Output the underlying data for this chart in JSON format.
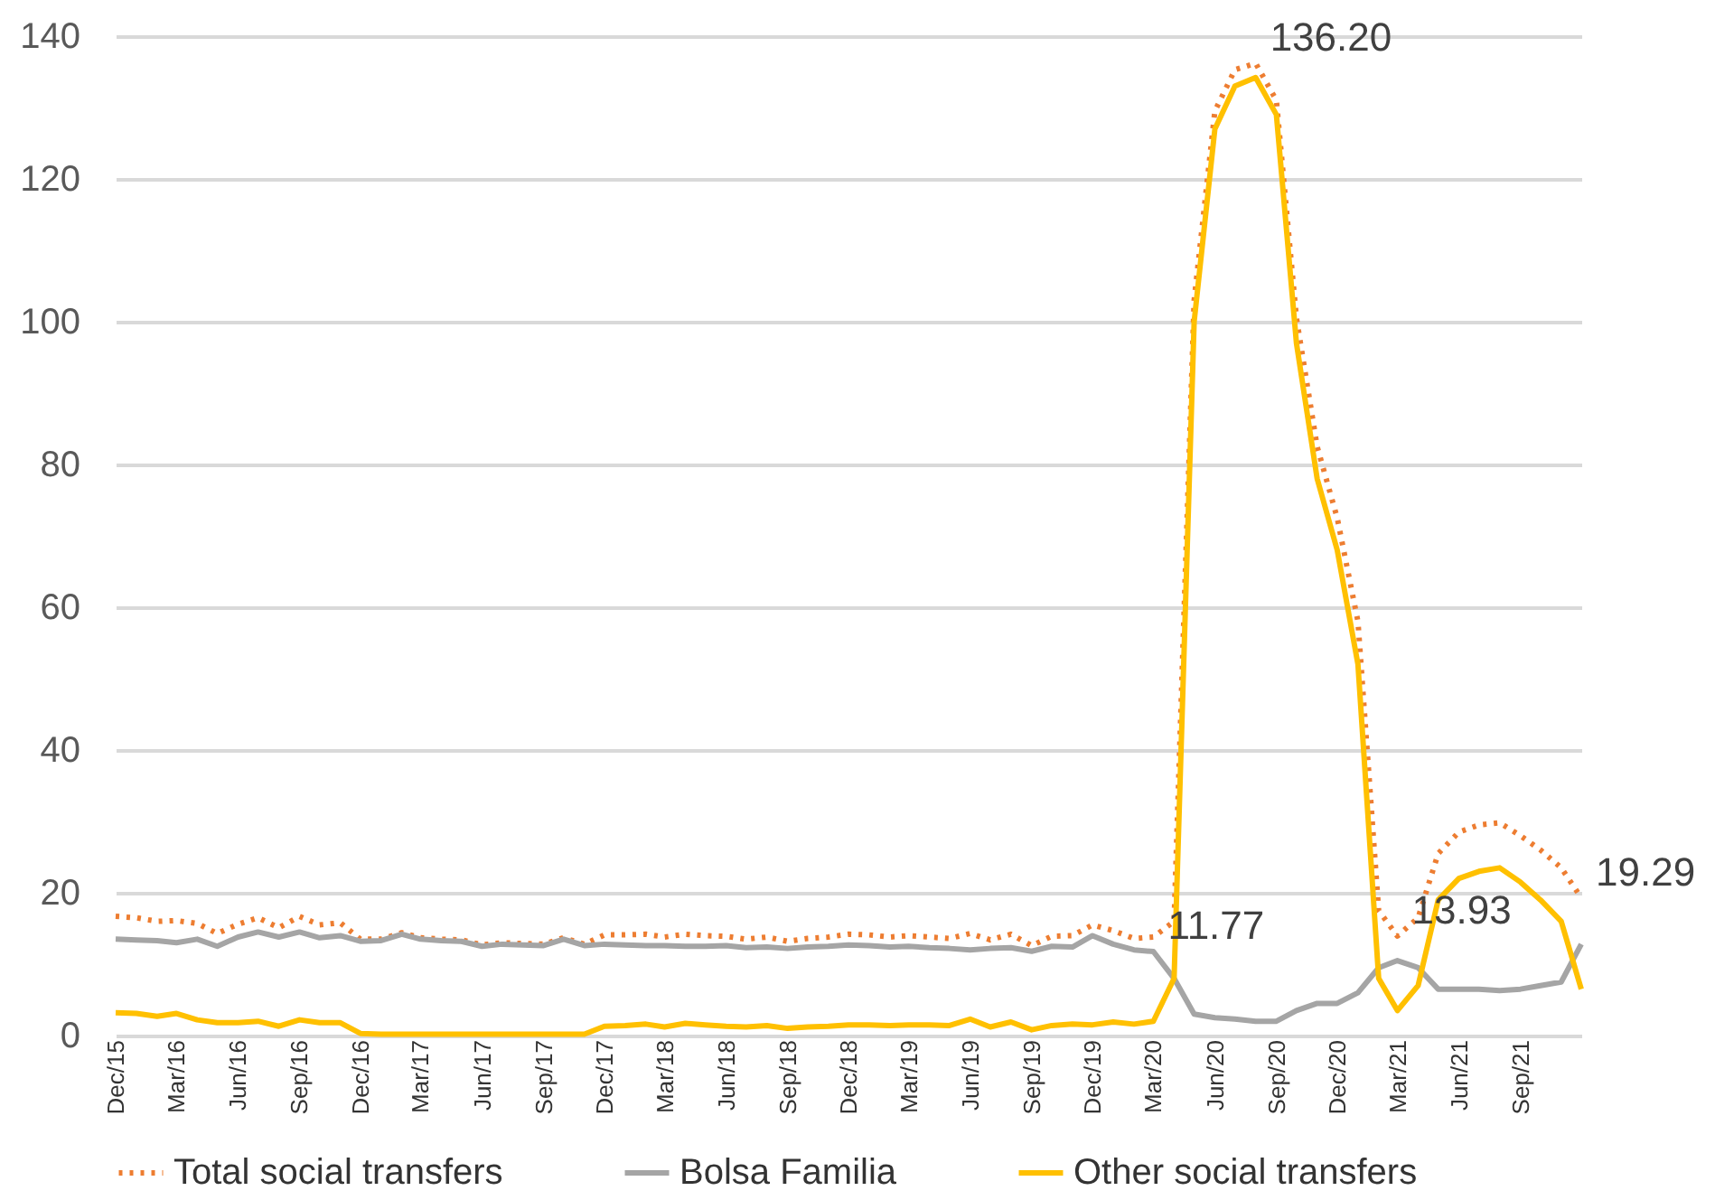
{
  "chart_data": {
    "type": "line",
    "x": [
      "2015-12",
      "2016-01",
      "2016-02",
      "2016-03",
      "2016-04",
      "2016-05",
      "2016-06",
      "2016-07",
      "2016-08",
      "2016-09",
      "2016-10",
      "2016-11",
      "2016-12",
      "2017-01",
      "2017-02",
      "2017-03",
      "2017-04",
      "2017-05",
      "2017-06",
      "2017-07",
      "2017-08",
      "2017-09",
      "2017-10",
      "2017-11",
      "2017-12",
      "2018-01",
      "2018-02",
      "2018-03",
      "2018-04",
      "2018-05",
      "2018-06",
      "2018-07",
      "2018-08",
      "2018-09",
      "2018-10",
      "2018-11",
      "2018-12",
      "2019-01",
      "2019-02",
      "2019-03",
      "2019-04",
      "2019-05",
      "2019-06",
      "2019-07",
      "2019-08",
      "2019-09",
      "2019-10",
      "2019-11",
      "2019-12",
      "2020-01",
      "2020-02",
      "2020-03",
      "2020-04",
      "2020-05",
      "2020-06",
      "2020-07",
      "2020-08",
      "2020-09",
      "2020-10",
      "2020-11",
      "2020-12",
      "2021-01",
      "2021-02",
      "2021-03",
      "2021-04",
      "2021-05",
      "2021-06",
      "2021-07",
      "2021-08",
      "2021-09",
      "2021-10",
      "2021-11",
      "2021-12"
    ],
    "series": [
      {
        "name": "Total social transfers",
        "color": "#ed7d31",
        "line_style": "dotted",
        "values": [
          16.7,
          16.5,
          16.0,
          16.1,
          15.7,
          14.3,
          15.6,
          16.5,
          15.1,
          16.7,
          15.5,
          15.8,
          13.5,
          13.5,
          14.4,
          13.7,
          13.5,
          13.4,
          12.7,
          13.0,
          12.9,
          12.8,
          13.7,
          12.8,
          14.1,
          14.1,
          14.2,
          13.8,
          14.2,
          14.0,
          13.9,
          13.5,
          13.8,
          13.2,
          13.6,
          13.8,
          14.2,
          14.1,
          13.8,
          14.0,
          13.8,
          13.6,
          14.3,
          13.4,
          14.2,
          12.6,
          13.9,
          14.0,
          15.5,
          14.7,
          13.6,
          13.8,
          16.0,
          103,
          129.5,
          135.3,
          136.2,
          131,
          100.5,
          82.5,
          72.5,
          58,
          17.5,
          13.93,
          16.5,
          25.5,
          28.5,
          29.5,
          29.8,
          28,
          26,
          23.5,
          19.29
        ]
      },
      {
        "name": "Bolsa Familia",
        "color": "#a5a5a5",
        "line_style": "solid",
        "values": [
          13.5,
          13.4,
          13.3,
          13.0,
          13.5,
          12.5,
          13.8,
          14.5,
          13.8,
          14.5,
          13.7,
          14.0,
          13.2,
          13.3,
          14.2,
          13.5,
          13.3,
          13.2,
          12.5,
          12.8,
          12.7,
          12.6,
          13.5,
          12.6,
          12.8,
          12.7,
          12.6,
          12.6,
          12.5,
          12.5,
          12.6,
          12.3,
          12.4,
          12.2,
          12.4,
          12.5,
          12.7,
          12.6,
          12.4,
          12.5,
          12.3,
          12.2,
          12.0,
          12.2,
          12.3,
          11.8,
          12.5,
          12.4,
          14.0,
          12.8,
          12.0,
          11.77,
          8.0,
          3.0,
          2.5,
          2.3,
          2.0,
          2.0,
          3.5,
          4.5,
          4.5,
          6.0,
          9.5,
          10.5,
          9.5,
          6.5,
          6.5,
          6.5,
          6.3,
          6.5,
          7.0,
          7.5,
          12.8
        ]
      },
      {
        "name": "Other social transfers",
        "color": "#ffc000",
        "line_style": "solid",
        "values": [
          3.2,
          3.1,
          2.7,
          3.1,
          2.2,
          1.8,
          1.8,
          2.0,
          1.3,
          2.2,
          1.8,
          1.8,
          0.3,
          0.2,
          0.2,
          0.2,
          0.2,
          0.2,
          0.2,
          0.2,
          0.2,
          0.2,
          0.2,
          0.2,
          1.3,
          1.4,
          1.6,
          1.2,
          1.7,
          1.5,
          1.3,
          1.2,
          1.4,
          1.0,
          1.2,
          1.3,
          1.5,
          1.5,
          1.4,
          1.5,
          1.5,
          1.4,
          2.3,
          1.2,
          1.9,
          0.8,
          1.4,
          1.6,
          1.5,
          1.9,
          1.6,
          2.0,
          8.0,
          100,
          127,
          133,
          134.2,
          129,
          97,
          78,
          68,
          52,
          8,
          3.5,
          7,
          19,
          22,
          23,
          23.5,
          21.5,
          19,
          16,
          6.5
        ]
      }
    ],
    "xlim": [
      "2015-12",
      "2021-12"
    ],
    "xticks": [
      {
        "value": "2015-12",
        "label": "Dec/15"
      },
      {
        "value": "2016-03",
        "label": "Mar/16"
      },
      {
        "value": "2016-06",
        "label": "Jun/16"
      },
      {
        "value": "2016-09",
        "label": "Sep/16"
      },
      {
        "value": "2016-12",
        "label": "Dec/16"
      },
      {
        "value": "2017-03",
        "label": "Mar/17"
      },
      {
        "value": "2017-06",
        "label": "Jun/17"
      },
      {
        "value": "2017-09",
        "label": "Sep/17"
      },
      {
        "value": "2017-12",
        "label": "Dec/17"
      },
      {
        "value": "2018-03",
        "label": "Mar/18"
      },
      {
        "value": "2018-06",
        "label": "Jun/18"
      },
      {
        "value": "2018-09",
        "label": "Sep/18"
      },
      {
        "value": "2018-12",
        "label": "Dec/18"
      },
      {
        "value": "2019-03",
        "label": "Mar/19"
      },
      {
        "value": "2019-06",
        "label": "Jun/19"
      },
      {
        "value": "2019-09",
        "label": "Sep/19"
      },
      {
        "value": "2019-12",
        "label": "Dec/19"
      },
      {
        "value": "2020-03",
        "label": "Mar/20"
      },
      {
        "value": "2020-06",
        "label": "Jun/20"
      },
      {
        "value": "2020-09",
        "label": "Sep/20"
      },
      {
        "value": "2020-12",
        "label": "Dec/20"
      },
      {
        "value": "2021-03",
        "label": "Mar/21"
      },
      {
        "value": "2021-06",
        "label": "Jun/21"
      },
      {
        "value": "2021-09",
        "label": "Sep/21"
      }
    ],
    "ylim": [
      0,
      140
    ],
    "yticks": [
      0,
      20,
      40,
      60,
      80,
      100,
      120,
      140
    ],
    "grid": "y",
    "legend": "bottom",
    "annotations": [
      {
        "text": "136.20",
        "x": "2020-08",
        "y": 136.2
      },
      {
        "text": "11.77",
        "x": "2020-03",
        "y": 11.77
      },
      {
        "text": "13.93",
        "x": "2021-03",
        "y": 13.93
      },
      {
        "text": "19.29",
        "x": "2021-12",
        "y": 19.29
      }
    ]
  }
}
